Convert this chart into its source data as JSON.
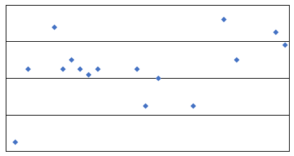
{
  "x_data": [
    10,
    25,
    55,
    65,
    75,
    85,
    95,
    105,
    150,
    160,
    175,
    215,
    250,
    265,
    310,
    320
  ],
  "y_data": [
    -35,
    5,
    28,
    5,
    10,
    5,
    2,
    5,
    5,
    -15,
    0,
    -15,
    32,
    10,
    25,
    18
  ],
  "xlim": [
    0,
    325
  ],
  "ylim": [
    -40,
    40
  ],
  "yticks": [
    -40,
    -20,
    0,
    20,
    40
  ],
  "marker_color": "#4472C4",
  "marker": "D",
  "marker_size": 4,
  "grid_color": "#000000",
  "bg_color": "#ffffff",
  "linewidth": 0.7
}
